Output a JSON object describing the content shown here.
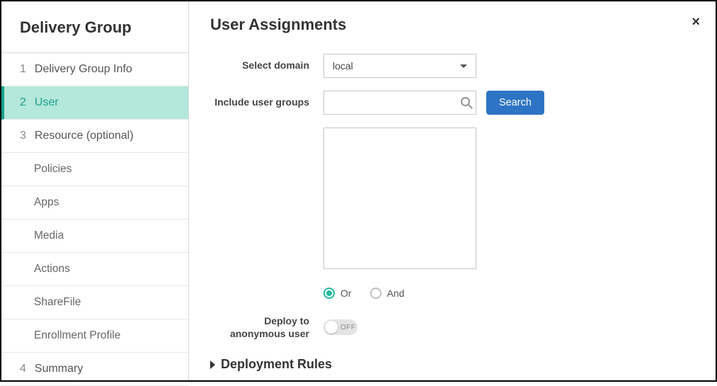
{
  "sidebar": {
    "title": "Delivery Group",
    "items": [
      {
        "num": "1",
        "label": "Delivery Group Info",
        "active": false,
        "sub": false
      },
      {
        "num": "2",
        "label": "User",
        "active": true,
        "sub": false
      },
      {
        "num": "3",
        "label": "Resource (optional)",
        "active": false,
        "sub": false
      },
      {
        "num": "",
        "label": "Policies",
        "active": false,
        "sub": true
      },
      {
        "num": "",
        "label": "Apps",
        "active": false,
        "sub": true
      },
      {
        "num": "",
        "label": "Media",
        "active": false,
        "sub": true
      },
      {
        "num": "",
        "label": "Actions",
        "active": false,
        "sub": true
      },
      {
        "num": "",
        "label": "ShareFile",
        "active": false,
        "sub": true
      },
      {
        "num": "",
        "label": "Enrollment Profile",
        "active": false,
        "sub": true
      },
      {
        "num": "4",
        "label": "Summary",
        "active": false,
        "sub": false
      }
    ]
  },
  "main": {
    "title": "User Assignments",
    "close_glyph": "×",
    "domain": {
      "label": "Select domain",
      "value": "local"
    },
    "groups": {
      "label": "Include user groups",
      "search_button": "Search",
      "input_value": ""
    },
    "operator": {
      "options": [
        "Or",
        "And"
      ],
      "selected": "Or"
    },
    "anonymous": {
      "label": "Deploy to anonymous user",
      "state_text": "OFF",
      "value": false
    },
    "section": {
      "title": "Deployment Rules"
    }
  },
  "colors": {
    "accent": "#1fb9a1",
    "active_bg": "#b3e8db",
    "primary_btn": "#2d74c4",
    "border": "#c7c7c7"
  }
}
